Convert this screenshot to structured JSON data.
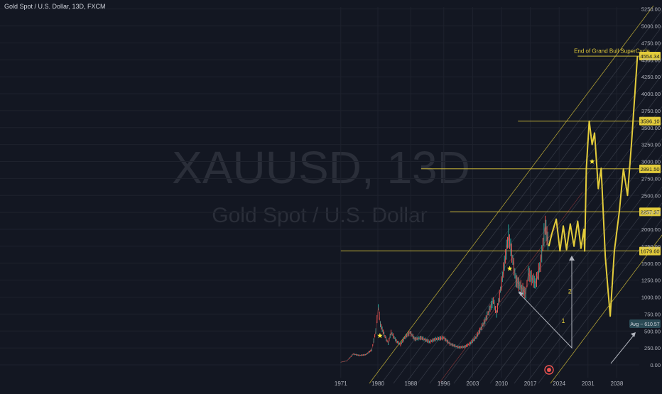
{
  "header": {
    "title": "Gold Spot / U.S. Dollar, 13D, FXCM"
  },
  "watermark": {
    "symbol": "XAUUSD, 13D",
    "name": "Gold Spot / U.S. Dollar"
  },
  "colors": {
    "background": "#131722",
    "grid": "#1e222d",
    "axis_text": "#b2b5be",
    "gold": "#e3cc3b",
    "candle_up": "#26a69a",
    "candle_down": "#ef5350",
    "channel": "#6d7381",
    "arrow": "#b2b5be",
    "avg_label_bg": "#2a4a55"
  },
  "chart_data": {
    "type": "line",
    "title": "Gold Spot / U.S. Dollar, 13D, FXCM",
    "x_ticks": [
      "1971",
      "1980",
      "1988",
      "1996",
      "2003",
      "2010",
      "2017",
      "2024",
      "2031",
      "2038"
    ],
    "y_ticks": [
      "0.00",
      "250.00",
      "500.00",
      "750.00",
      "1000.00",
      "1250.00",
      "1500.00",
      "1750.00",
      "2000.00",
      "2250.00",
      "2500.00",
      "2750.00",
      "3000.00",
      "3250.00",
      "3500.00",
      "3750.00",
      "4000.00",
      "4250.00",
      "4500.00",
      "4750.00",
      "5000.00",
      "5250.00"
    ],
    "ylim": [
      -60,
      5330
    ],
    "xlim": [
      1970.0,
      2043.4
    ],
    "grid": true,
    "series": [
      {
        "role": "historical price",
        "points": [
          [
            1971.0,
            40
          ],
          [
            1972.5,
            60
          ],
          [
            1974.0,
            160
          ],
          [
            1975.5,
            140
          ],
          [
            1977.0,
            150
          ],
          [
            1978.5,
            220
          ],
          [
            1979.5,
            500
          ],
          [
            1980.1,
            850
          ],
          [
            1980.6,
            600
          ],
          [
            1981.5,
            450
          ],
          [
            1982.5,
            320
          ],
          [
            1983.2,
            480
          ],
          [
            1984.5,
            350
          ],
          [
            1985.5,
            300
          ],
          [
            1986.5,
            400
          ],
          [
            1987.8,
            480
          ],
          [
            1989.0,
            380
          ],
          [
            1990.5,
            400
          ],
          [
            1992.5,
            340
          ],
          [
            1994.0,
            380
          ],
          [
            1996.0,
            400
          ],
          [
            1997.5,
            310
          ],
          [
            1999.5,
            260
          ],
          [
            2001.0,
            265
          ],
          [
            2002.5,
            320
          ],
          [
            2004.0,
            420
          ],
          [
            2006.0,
            650
          ],
          [
            2008.0,
            950
          ],
          [
            2008.8,
            750
          ],
          [
            2010.0,
            1200
          ],
          [
            2011.7,
            1900
          ],
          [
            2012.5,
            1650
          ],
          [
            2013.5,
            1250
          ],
          [
            2015.9,
            1050
          ],
          [
            2016.5,
            1350
          ],
          [
            2018.3,
            1200
          ],
          [
            2019.5,
            1500
          ],
          [
            2020.6,
            2060
          ],
          [
            2021.5,
            1750
          ]
        ]
      },
      {
        "role": "projected path",
        "points": [
          [
            2021.5,
            1750
          ],
          [
            2022.3,
            1950
          ],
          [
            2023.3,
            2150
          ],
          [
            2024.2,
            1680
          ],
          [
            2025.0,
            2050
          ],
          [
            2025.8,
            1700
          ],
          [
            2026.7,
            2080
          ],
          [
            2027.6,
            1750
          ],
          [
            2028.5,
            2120
          ],
          [
            2029.3,
            1720
          ],
          [
            2030.0,
            2000
          ],
          [
            2030.2,
            1679.6
          ],
          [
            2030.6,
            2900
          ],
          [
            2031.3,
            3596.1
          ],
          [
            2032.0,
            3250
          ],
          [
            2032.6,
            3420
          ],
          [
            2033.5,
            2600
          ],
          [
            2034.2,
            2900
          ],
          [
            2035.2,
            1600
          ],
          [
            2035.8,
            1150
          ],
          [
            2036.4,
            720
          ],
          [
            2037.4,
            1680
          ],
          [
            2038.6,
            2257.37
          ],
          [
            2039.6,
            2891.5
          ],
          [
            2040.6,
            2500
          ],
          [
            2041.6,
            3300
          ],
          [
            2043.0,
            4554.34
          ]
        ]
      }
    ],
    "price_levels": [
      {
        "label": "4554.34",
        "value": 4554.34,
        "x_start": 2028.5
      },
      {
        "label": "3596.10",
        "value": 3596.1,
        "x_start": 2014.0
      },
      {
        "label": "2891.50",
        "value": 2891.5,
        "x_start": 1990.5
      },
      {
        "label": "2257.37",
        "value": 2257.37,
        "x_start": 1997.5
      },
      {
        "label": "1679.60",
        "value": 1679.6,
        "x_start": 1971.0
      }
    ],
    "annotations": [
      {
        "text": "End of Grand Bull SuperCycle",
        "x": 2036.8,
        "y": 4600
      },
      {
        "text": "1",
        "x": 2025.0,
        "y": 620
      },
      {
        "text": "2",
        "x": 2026.6,
        "y": 1050
      }
    ],
    "avg_label": "Avg ~ 610.57",
    "markers": [
      {
        "type": "star",
        "x": 1980.5,
        "y": 430
      },
      {
        "type": "star",
        "x": 2012.0,
        "y": 1420
      },
      {
        "type": "star",
        "x": 2032.0,
        "y": 3000
      }
    ]
  }
}
